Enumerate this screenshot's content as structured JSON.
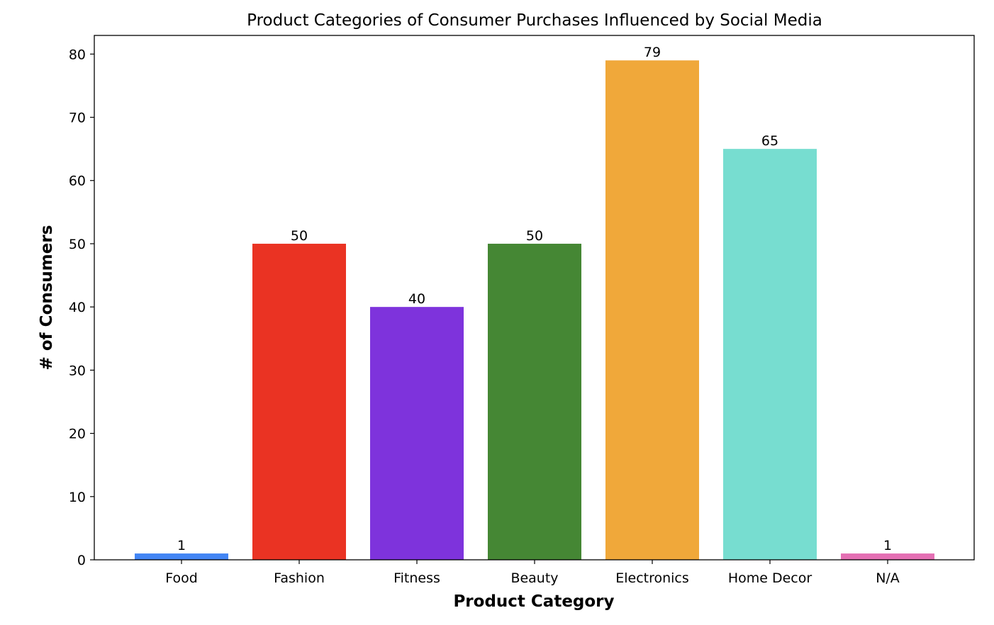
{
  "chart_data": {
    "type": "bar",
    "title": "Product Categories of Consumer Purchases Influenced by Social Media",
    "xlabel": "Product Category",
    "ylabel": "# of Consumers",
    "categories": [
      "Food",
      "Fashion",
      "Fitness",
      "Beauty",
      "Electronics",
      "Home Decor",
      "N/A"
    ],
    "values": [
      1,
      50,
      40,
      50,
      79,
      65,
      1
    ],
    "colors": [
      "#4285f4",
      "#ea3323",
      "#7e33dc",
      "#458734",
      "#f0a83a",
      "#77ddd0",
      "#e46fb3"
    ],
    "value_labels": [
      "1",
      "50",
      "40",
      "50",
      "79",
      "65",
      "1"
    ],
    "yticks": [
      0,
      10,
      20,
      30,
      40,
      50,
      60,
      70,
      80
    ],
    "ylim": [
      0,
      82.95
    ],
    "grid": false,
    "legend": "none"
  }
}
